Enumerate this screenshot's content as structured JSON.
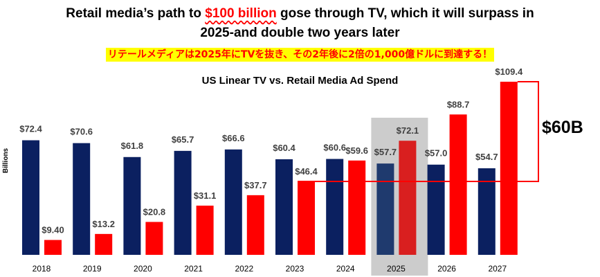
{
  "header": {
    "title_part1": "Retail media’s path to ",
    "title_highlight": "$100 billion",
    "title_part2": " gose through TV, which it will surpass in",
    "title_line2": "2025-and double two years later",
    "subtitle_ja": "リテールメディアは2025年にTVを抜き、その2年後に2倍の1,000億ドルに到達する！"
  },
  "callout": {
    "label": "$60B"
  },
  "colors": {
    "tv": "#0b2060",
    "retail": "#ff0000",
    "highlight_band": "#cccccc",
    "label_text": "#404040"
  },
  "chart_data": {
    "type": "bar",
    "title": "US Linear TV vs. Retail Media Ad Spend",
    "ylabel": "Billions",
    "xlabel": "",
    "categories": [
      "2018",
      "2019",
      "2020",
      "2021",
      "2022",
      "2023",
      "2024",
      "2025",
      "2026",
      "2027"
    ],
    "series": [
      {
        "values": [
          72.4,
          70.6,
          61.8,
          65.7,
          66.6,
          60.4,
          60.6,
          57.7,
          57.0,
          54.7
        ],
        "labels": [
          "$72.4",
          "$70.6",
          "$61.8",
          "$65.7",
          "$66.6",
          "$60.4",
          "$60.6",
          "$57.7",
          "$57.0",
          "$54.7"
        ]
      },
      {
        "values": [
          9.4,
          13.2,
          20.8,
          31.1,
          37.7,
          46.4,
          59.6,
          72.1,
          88.7,
          109.4
        ],
        "labels": [
          "$9.40",
          "$13.2",
          "$20.8",
          "$31.1",
          "$37.7",
          "$46.4",
          "$59.6",
          "$72.1",
          "$88.7",
          "$109.4"
        ]
      }
    ],
    "ylim": [
      0,
      109.4
    ],
    "highlighted_category": "2025",
    "legend": "none",
    "grid": false
  }
}
